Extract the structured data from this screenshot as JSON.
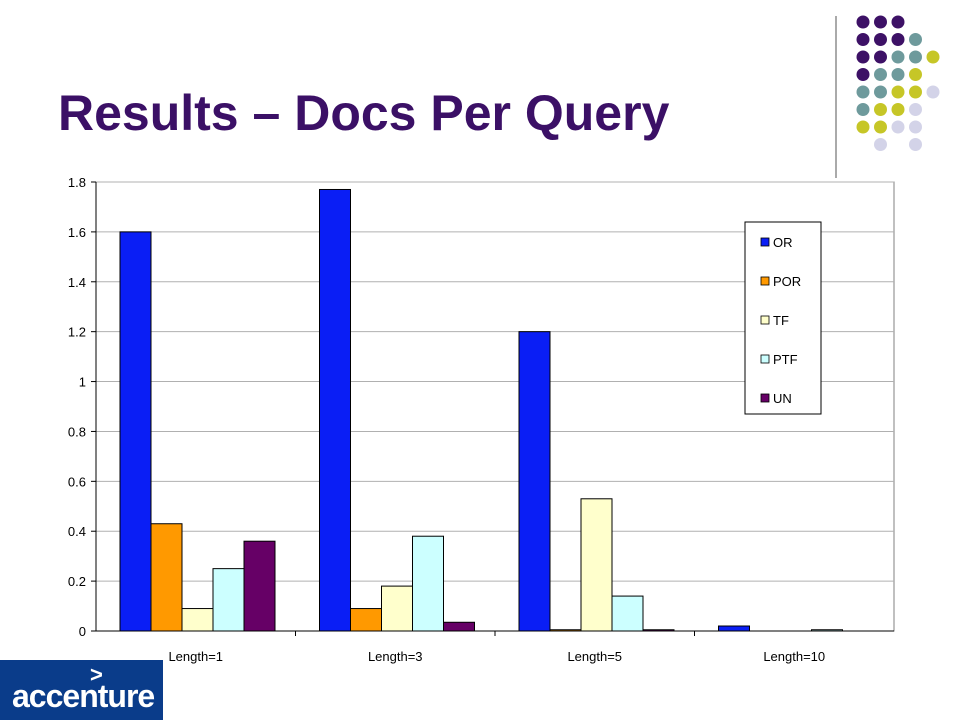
{
  "slide": {
    "title": "Results – Docs Per Query",
    "logo_text": "accenture",
    "logo_mark": ">"
  },
  "decoration": {
    "dot_rows": [
      [
        "#3d1166",
        "#3d1166",
        "#3d1166",
        null,
        null
      ],
      [
        "#3d1166",
        "#3d1166",
        "#3d1166",
        "#6e9a9c",
        null
      ],
      [
        "#3d1166",
        "#3d1166",
        "#6e9a9c",
        "#6e9a9c",
        "#c6c627"
      ],
      [
        "#3d1166",
        "#6e9a9c",
        "#6e9a9c",
        "#c6c627",
        null
      ],
      [
        "#6e9a9c",
        "#6e9a9c",
        "#c6c627",
        "#c6c627",
        "#d3d3e8"
      ],
      [
        "#6e9a9c",
        "#c6c627",
        "#c6c627",
        "#d3d3e8",
        null
      ],
      [
        "#c6c627",
        "#c6c627",
        "#d3d3e8",
        "#d3d3e8",
        null
      ],
      [
        null,
        "#d3d3e8",
        null,
        "#d3d3e8",
        null
      ]
    ]
  },
  "chart_data": {
    "type": "bar",
    "title": "",
    "xlabel": "",
    "ylabel": "",
    "categories": [
      "Length=1",
      "Length=3",
      "Length=5",
      "Length=10"
    ],
    "series": [
      {
        "name": "OR",
        "color": "#0a1ef5",
        "values": [
          1.6,
          1.77,
          1.2,
          0.02
        ]
      },
      {
        "name": "POR",
        "color": "#ff9900",
        "values": [
          0.43,
          0.09,
          0.005,
          0
        ]
      },
      {
        "name": "TF",
        "color": "#ffffcc",
        "values": [
          0.09,
          0.18,
          0.53,
          0
        ]
      },
      {
        "name": "PTF",
        "color": "#ccffff",
        "values": [
          0.25,
          0.38,
          0.14,
          0.005
        ]
      },
      {
        "name": "UN",
        "color": "#660066",
        "values": [
          0.36,
          0.035,
          0.005,
          0
        ]
      }
    ],
    "ylim": [
      0,
      1.8
    ],
    "yticks": [
      "0",
      "0.2",
      "0.4",
      "0.6",
      "0.8",
      "1",
      "1.2",
      "1.4",
      "1.6",
      "1.8"
    ],
    "ytick_values": [
      0,
      0.2,
      0.4,
      0.6,
      0.8,
      1,
      1.2,
      1.4,
      1.6,
      1.8
    ],
    "grid": true,
    "legend_position": "right"
  }
}
